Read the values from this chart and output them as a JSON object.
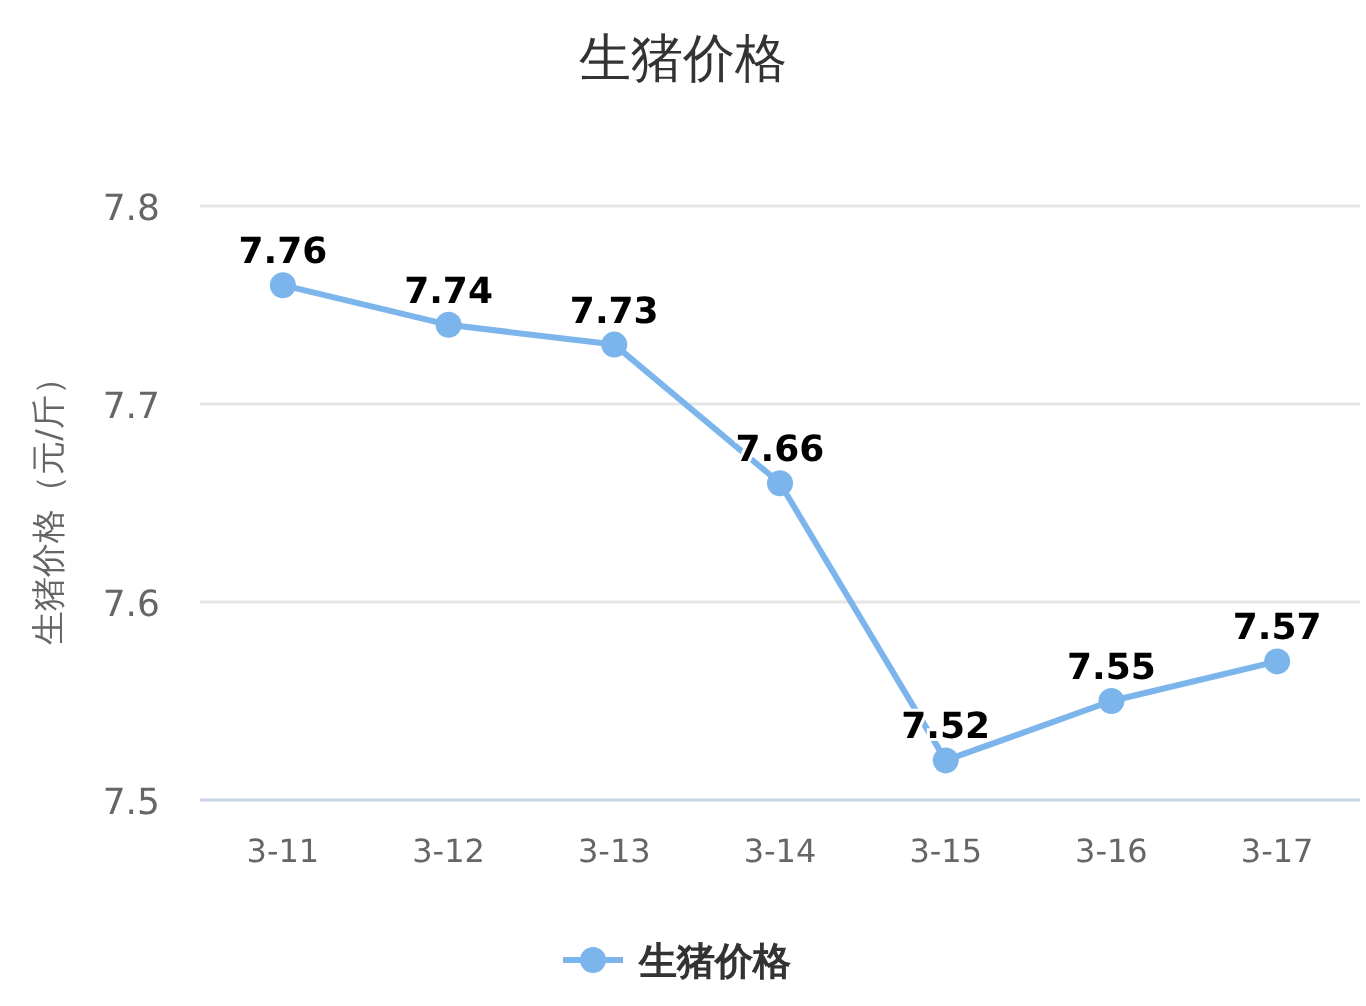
{
  "chart_data": {
    "type": "line",
    "title": "生猪价格",
    "ylabel": "生猪价格（元/斤）",
    "categories": [
      "3-11",
      "3-12",
      "3-13",
      "3-14",
      "3-15",
      "3-16",
      "3-17"
    ],
    "series": [
      {
        "name": "生猪价格",
        "color": "#7cb5ec",
        "values": [
          7.76,
          7.74,
          7.73,
          7.66,
          7.52,
          7.55,
          7.57
        ]
      }
    ],
    "ylim": [
      7.5,
      7.8
    ],
    "yticks": [
      7.5,
      7.6,
      7.7,
      7.8
    ],
    "grid": "y",
    "legend": "bottom",
    "marker": "circle",
    "data_labels": true
  }
}
